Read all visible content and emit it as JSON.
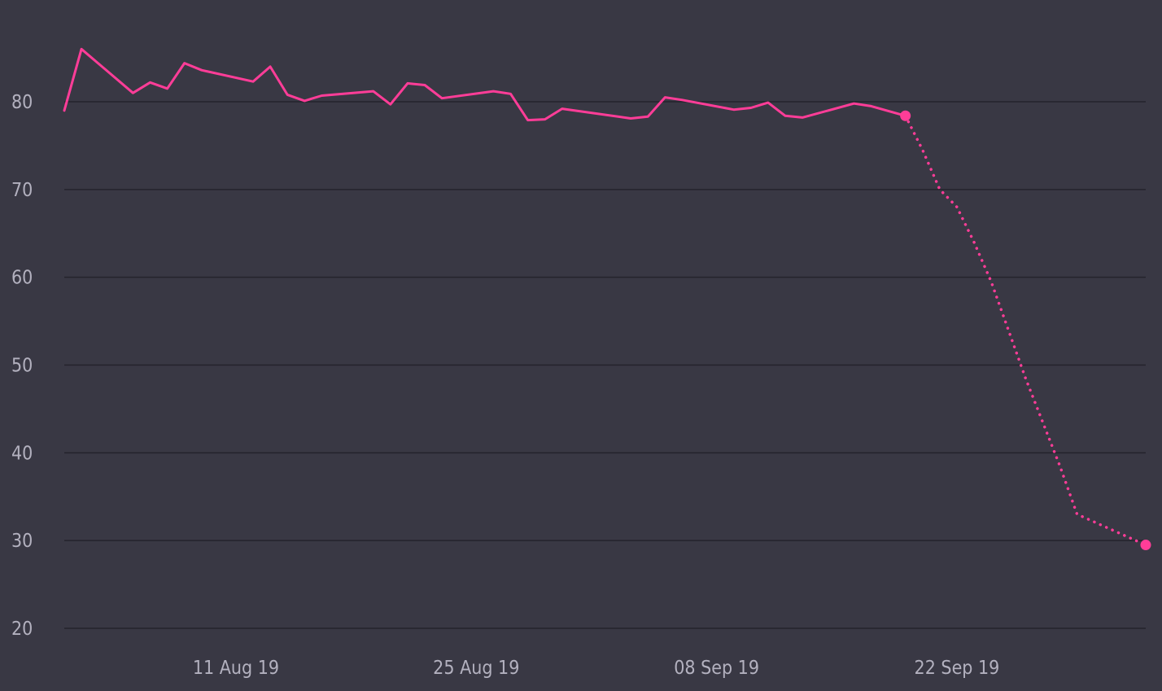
{
  "chart_data": {
    "type": "line",
    "title": "",
    "xlabel": "",
    "ylabel": "",
    "colors": {
      "background": "#393844",
      "series": "#ff3d98",
      "grid": "#24232c",
      "tick_text": "#b3b1bf"
    },
    "xlim": [
      "2019-08-01",
      "2019-10-03"
    ],
    "ylim": [
      20,
      86
    ],
    "y_ticks": [
      20,
      30,
      40,
      50,
      60,
      70,
      80
    ],
    "y_tick_labels": [
      "20",
      "30",
      "40",
      "50",
      "60",
      "70",
      "80"
    ],
    "x_ticks": [
      "2019-08-11",
      "2019-08-25",
      "2019-09-08",
      "2019-09-22"
    ],
    "x_tick_labels": [
      "11 Aug 19",
      "25 Aug 19",
      "08 Sep 19",
      "22 Sep 19"
    ],
    "grid": "horizontal",
    "legend": "none",
    "series": [
      {
        "style": "solid",
        "points": [
          [
            "2019-08-01",
            79.0
          ],
          [
            "2019-08-02",
            86.0
          ],
          [
            "2019-08-05",
            81.0
          ],
          [
            "2019-08-06",
            82.2
          ],
          [
            "2019-08-07",
            81.5
          ],
          [
            "2019-08-08",
            84.4
          ],
          [
            "2019-08-09",
            83.6
          ],
          [
            "2019-08-12",
            82.3
          ],
          [
            "2019-08-13",
            84.0
          ],
          [
            "2019-08-14",
            80.8
          ],
          [
            "2019-08-15",
            80.1
          ],
          [
            "2019-08-16",
            80.7
          ],
          [
            "2019-08-19",
            81.2
          ],
          [
            "2019-08-20",
            79.7
          ],
          [
            "2019-08-21",
            82.1
          ],
          [
            "2019-08-22",
            81.9
          ],
          [
            "2019-08-23",
            80.4
          ],
          [
            "2019-08-26",
            81.2
          ],
          [
            "2019-08-27",
            80.9
          ],
          [
            "2019-08-28",
            77.9
          ],
          [
            "2019-08-29",
            78.0
          ],
          [
            "2019-08-30",
            79.2
          ],
          [
            "2019-09-03",
            78.1
          ],
          [
            "2019-09-04",
            78.3
          ],
          [
            "2019-09-05",
            80.5
          ],
          [
            "2019-09-06",
            80.2
          ],
          [
            "2019-09-09",
            79.1
          ],
          [
            "2019-09-10",
            79.3
          ],
          [
            "2019-09-11",
            79.9
          ],
          [
            "2019-09-12",
            78.4
          ],
          [
            "2019-09-13",
            78.2
          ],
          [
            "2019-09-16",
            79.8
          ],
          [
            "2019-09-17",
            79.5
          ],
          [
            "2019-09-19",
            78.4
          ]
        ]
      },
      {
        "style": "dotted",
        "points": [
          [
            "2019-09-19",
            78.4
          ],
          [
            "2019-09-20",
            74.5
          ],
          [
            "2019-09-21",
            70.0
          ],
          [
            "2019-09-22",
            68.0
          ],
          [
            "2019-09-23",
            64.0
          ],
          [
            "2019-09-24",
            59.5
          ],
          [
            "2019-09-25",
            54.0
          ],
          [
            "2019-09-26",
            48.5
          ],
          [
            "2019-09-27",
            43.5
          ],
          [
            "2019-09-28",
            38.5
          ],
          [
            "2019-09-29",
            33.0
          ],
          [
            "2019-10-03",
            29.5
          ]
        ]
      }
    ],
    "markers": [
      [
        "2019-09-19",
        78.4
      ],
      [
        "2019-10-03",
        29.5
      ]
    ]
  }
}
